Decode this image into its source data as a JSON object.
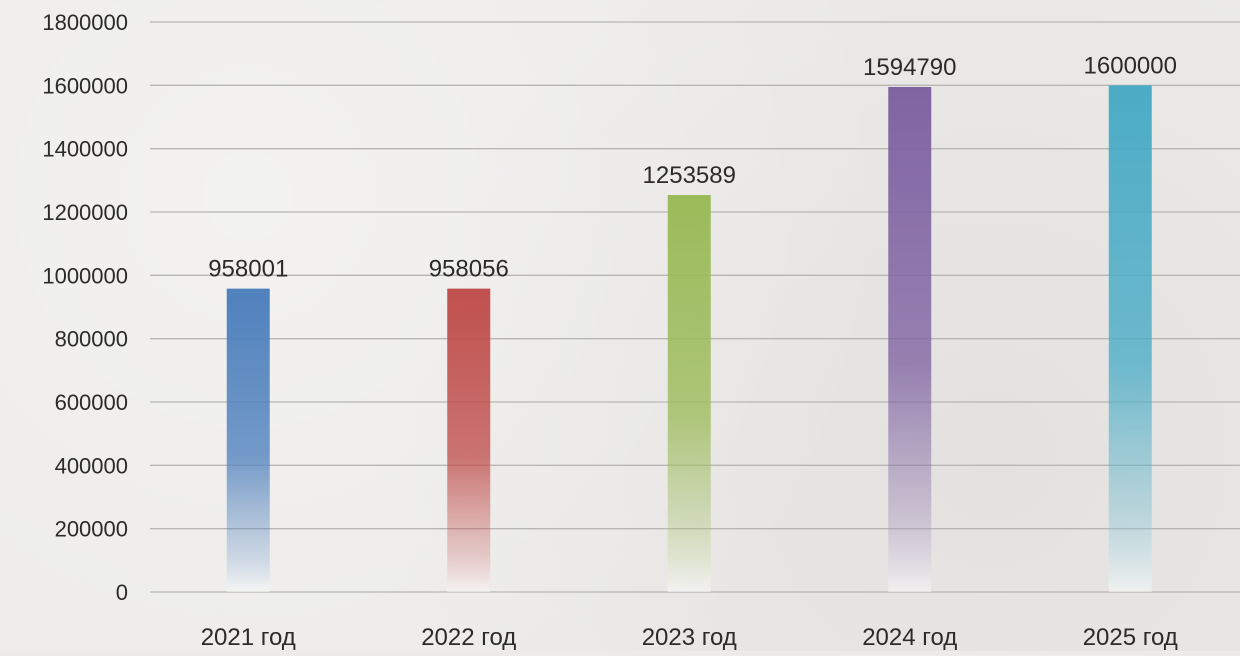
{
  "chart_data": {
    "type": "bar",
    "categories": [
      "2021 год",
      "2022 год",
      "2023 год",
      "2024 год",
      "2025 год"
    ],
    "values": [
      958001,
      958056,
      1253589,
      1594790,
      1600000
    ],
    "data_labels": [
      "958001",
      "958056",
      "1253589",
      "1594790",
      "1600000"
    ],
    "title": "",
    "xlabel": "",
    "ylabel": "",
    "ylim": [
      0,
      1800000
    ],
    "yticks": [
      "0",
      "200000",
      "400000",
      "600000",
      "800000",
      "1000000",
      "1200000",
      "1400000",
      "1600000",
      "1800000"
    ],
    "grid": true,
    "legend": "none",
    "bar_colors": [
      "#4f81bd",
      "#c0504d",
      "#9bbb59",
      "#8064a2",
      "#4bacc6"
    ],
    "bar_fill_style": "vertical gradient fading to white at bottom"
  }
}
